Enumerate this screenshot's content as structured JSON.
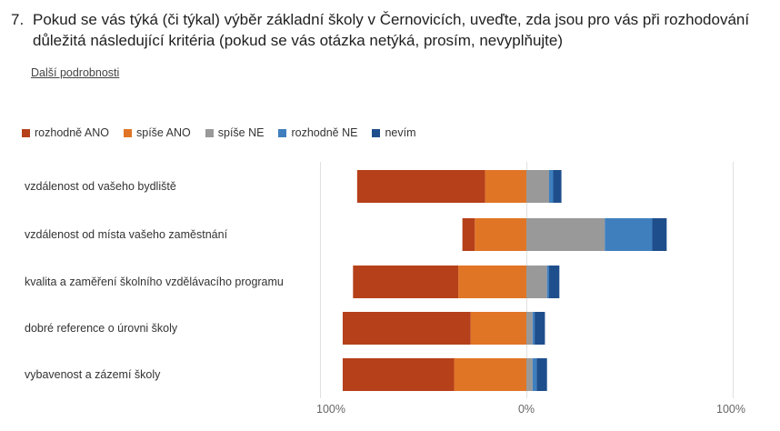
{
  "question": {
    "number": "7.",
    "text": "Pokud se vás týká (či týkal) výběr základní školy v Černovicích, uveďte, zda jsou pro vás při rozhodování důležitá následující kritéria (pokud se vás otázka netýká, prosím, nevyplňujte)"
  },
  "details_link": "Další podrobnosti",
  "chart_data": {
    "type": "bar",
    "orientation": "horizontal-diverging",
    "categories": [
      "vzdálenost od vašeho bydliště",
      "vzdálenost od místa vašeho zaměstnání",
      "kvalita a zaměření školního vzdělávacího programu",
      "dobré reference o úrovni školy",
      "vybavenost a zázemí školy"
    ],
    "series": [
      {
        "name": "rozhodně ANO",
        "color": "#b5401a",
        "values": [
          62,
          6,
          51,
          62,
          54
        ]
      },
      {
        "name": "spíše ANO",
        "color": "#e07526",
        "values": [
          20,
          25,
          33,
          27,
          35
        ]
      },
      {
        "name": "spíše NE",
        "color": "#999999",
        "values": [
          11,
          38,
          10,
          3,
          3
        ]
      },
      {
        "name": "rozhodně NE",
        "color": "#3f7fbe",
        "values": [
          2,
          23,
          1,
          1,
          2
        ]
      },
      {
        "name": "nevím",
        "color": "#1f4e8c",
        "values": [
          4,
          7,
          5,
          5,
          5
        ]
      }
    ],
    "negative_series": [
      "rozhodně ANO",
      "spíše ANO"
    ],
    "xlim": [
      -100,
      100
    ],
    "x_ticks": [
      "100%",
      "0%",
      "100%"
    ],
    "legend_position": "top-left",
    "grid": true
  }
}
